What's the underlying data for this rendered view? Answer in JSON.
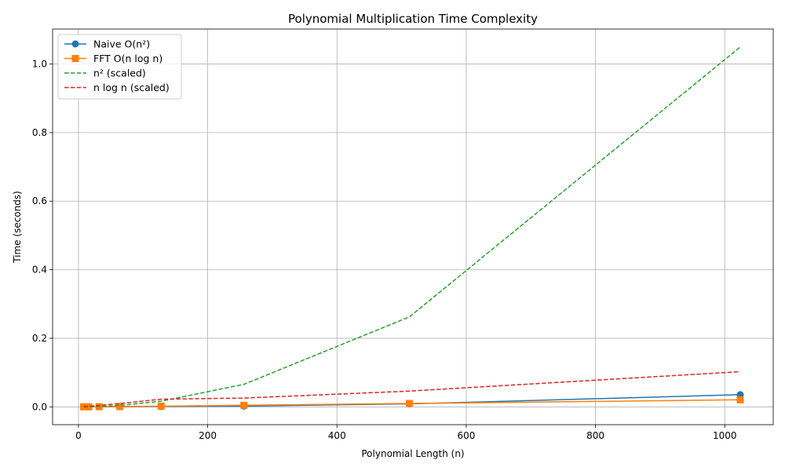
{
  "chart_data": {
    "type": "line",
    "title": "Polynomial Multiplication Time Complexity",
    "xlabel": "Polynomial Length (n)",
    "ylabel": "Time (seconds)",
    "xlim": [
      -40,
      1075
    ],
    "ylim": [
      -0.052,
      1.102
    ],
    "xticks": [
      0,
      200,
      400,
      600,
      800,
      1000
    ],
    "yticks": [
      0.0,
      0.2,
      0.4,
      0.6,
      0.8,
      1.0
    ],
    "xtick_labels": [
      "0",
      "200",
      "400",
      "600",
      "800",
      "1000"
    ],
    "ytick_labels": [
      "0.0",
      "0.2",
      "0.4",
      "0.6",
      "0.8",
      "1.0"
    ],
    "grid": true,
    "legend_position": "upper-left",
    "series": [
      {
        "name": "Naive O(n²)",
        "color": "#1f77b4",
        "linestyle": "solid",
        "marker": "circle",
        "x": [
          8,
          16,
          32,
          64,
          128,
          256,
          512,
          1024
        ],
        "y": [
          2e-05,
          6e-05,
          0.0002,
          0.0005,
          0.0008,
          0.0021,
          0.0087,
          0.0355
        ]
      },
      {
        "name": "FFT O(n log n)",
        "color": "#ff7f0e",
        "linestyle": "solid",
        "marker": "square",
        "x": [
          8,
          16,
          32,
          64,
          128,
          256,
          512,
          1024
        ],
        "y": [
          0.0001,
          0.0002,
          0.0004,
          0.0009,
          0.0019,
          0.0045,
          0.0098,
          0.0205
        ]
      },
      {
        "name": "n² (scaled)",
        "color": "#2ca02c",
        "linestyle": "dashed",
        "marker": "none",
        "x": [
          8,
          16,
          32,
          64,
          128,
          256,
          512,
          1024
        ],
        "y": [
          6.41e-05,
          0.000256,
          0.001025,
          0.0041,
          0.0164,
          0.0656,
          0.2624,
          1.0496
        ]
      },
      {
        "name": "n log n (scaled)",
        "color": "#d62728",
        "linestyle": "dashed",
        "marker": "none",
        "x": [
          8,
          16,
          32,
          64,
          128,
          256,
          512,
          1024
        ],
        "y": [
          0.0006,
          0.0016,
          0.004,
          0.0096,
          0.0224,
          0.0256,
          0.0461,
          0.1025
        ]
      }
    ]
  }
}
